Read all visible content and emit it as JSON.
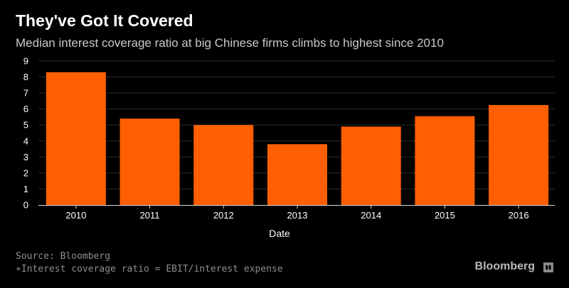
{
  "title": "They've Got It Covered",
  "subtitle": "Median interest coverage ratio at big Chinese firms climbs to highest since 2010",
  "source": "Source: Bloomberg",
  "note": "∗Interest coverage ratio = EBIT/interest expense",
  "brand": "Bloomberg",
  "colors": {
    "bar": "#ff5f00",
    "background": "#000000",
    "grid": "#2b2b2b",
    "axis": "#d9d9d9",
    "text": "#ffffff"
  },
  "chart_data": {
    "type": "bar",
    "title": "They've Got It Covered",
    "xlabel": "Date",
    "ylabel": "",
    "categories": [
      "2010",
      "2011",
      "2012",
      "2013",
      "2014",
      "2015",
      "2016"
    ],
    "values": [
      8.3,
      5.4,
      5.0,
      3.8,
      4.9,
      5.55,
      6.25
    ],
    "ylim": [
      0,
      9
    ],
    "yticks": [
      "0",
      "1",
      "2",
      "3",
      "4",
      "5",
      "6",
      "7",
      "8",
      "9"
    ],
    "grid": true,
    "legend": "none"
  }
}
